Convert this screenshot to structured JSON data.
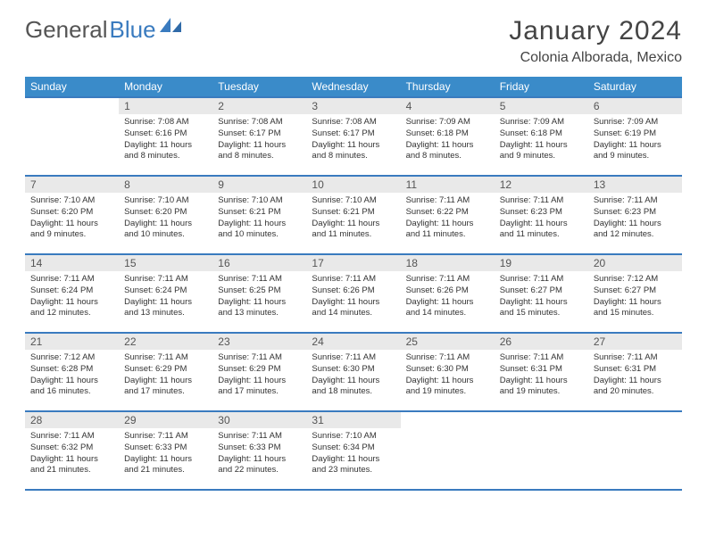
{
  "brand": {
    "word1": "General",
    "word2": "Blue"
  },
  "header": {
    "month_title": "January 2024",
    "location": "Colonia Alborada, Mexico"
  },
  "calendar": {
    "type": "table",
    "columns": [
      "Sunday",
      "Monday",
      "Tuesday",
      "Wednesday",
      "Thursday",
      "Friday",
      "Saturday"
    ],
    "header_bg": "#3a8bc9",
    "header_fg": "#ffffff",
    "daynum_bg": "#e9e9e9",
    "row_border_color": "#3a7bbf",
    "first_day_column": 1,
    "days": [
      {
        "n": 1,
        "sunrise": "7:08 AM",
        "sunset": "6:16 PM",
        "daylight": "11 hours and 8 minutes."
      },
      {
        "n": 2,
        "sunrise": "7:08 AM",
        "sunset": "6:17 PM",
        "daylight": "11 hours and 8 minutes."
      },
      {
        "n": 3,
        "sunrise": "7:08 AM",
        "sunset": "6:17 PM",
        "daylight": "11 hours and 8 minutes."
      },
      {
        "n": 4,
        "sunrise": "7:09 AM",
        "sunset": "6:18 PM",
        "daylight": "11 hours and 8 minutes."
      },
      {
        "n": 5,
        "sunrise": "7:09 AM",
        "sunset": "6:18 PM",
        "daylight": "11 hours and 9 minutes."
      },
      {
        "n": 6,
        "sunrise": "7:09 AM",
        "sunset": "6:19 PM",
        "daylight": "11 hours and 9 minutes."
      },
      {
        "n": 7,
        "sunrise": "7:10 AM",
        "sunset": "6:20 PM",
        "daylight": "11 hours and 9 minutes."
      },
      {
        "n": 8,
        "sunrise": "7:10 AM",
        "sunset": "6:20 PM",
        "daylight": "11 hours and 10 minutes."
      },
      {
        "n": 9,
        "sunrise": "7:10 AM",
        "sunset": "6:21 PM",
        "daylight": "11 hours and 10 minutes."
      },
      {
        "n": 10,
        "sunrise": "7:10 AM",
        "sunset": "6:21 PM",
        "daylight": "11 hours and 11 minutes."
      },
      {
        "n": 11,
        "sunrise": "7:11 AM",
        "sunset": "6:22 PM",
        "daylight": "11 hours and 11 minutes."
      },
      {
        "n": 12,
        "sunrise": "7:11 AM",
        "sunset": "6:23 PM",
        "daylight": "11 hours and 11 minutes."
      },
      {
        "n": 13,
        "sunrise": "7:11 AM",
        "sunset": "6:23 PM",
        "daylight": "11 hours and 12 minutes."
      },
      {
        "n": 14,
        "sunrise": "7:11 AM",
        "sunset": "6:24 PM",
        "daylight": "11 hours and 12 minutes."
      },
      {
        "n": 15,
        "sunrise": "7:11 AM",
        "sunset": "6:24 PM",
        "daylight": "11 hours and 13 minutes."
      },
      {
        "n": 16,
        "sunrise": "7:11 AM",
        "sunset": "6:25 PM",
        "daylight": "11 hours and 13 minutes."
      },
      {
        "n": 17,
        "sunrise": "7:11 AM",
        "sunset": "6:26 PM",
        "daylight": "11 hours and 14 minutes."
      },
      {
        "n": 18,
        "sunrise": "7:11 AM",
        "sunset": "6:26 PM",
        "daylight": "11 hours and 14 minutes."
      },
      {
        "n": 19,
        "sunrise": "7:11 AM",
        "sunset": "6:27 PM",
        "daylight": "11 hours and 15 minutes."
      },
      {
        "n": 20,
        "sunrise": "7:12 AM",
        "sunset": "6:27 PM",
        "daylight": "11 hours and 15 minutes."
      },
      {
        "n": 21,
        "sunrise": "7:12 AM",
        "sunset": "6:28 PM",
        "daylight": "11 hours and 16 minutes."
      },
      {
        "n": 22,
        "sunrise": "7:11 AM",
        "sunset": "6:29 PM",
        "daylight": "11 hours and 17 minutes."
      },
      {
        "n": 23,
        "sunrise": "7:11 AM",
        "sunset": "6:29 PM",
        "daylight": "11 hours and 17 minutes."
      },
      {
        "n": 24,
        "sunrise": "7:11 AM",
        "sunset": "6:30 PM",
        "daylight": "11 hours and 18 minutes."
      },
      {
        "n": 25,
        "sunrise": "7:11 AM",
        "sunset": "6:30 PM",
        "daylight": "11 hours and 19 minutes."
      },
      {
        "n": 26,
        "sunrise": "7:11 AM",
        "sunset": "6:31 PM",
        "daylight": "11 hours and 19 minutes."
      },
      {
        "n": 27,
        "sunrise": "7:11 AM",
        "sunset": "6:31 PM",
        "daylight": "11 hours and 20 minutes."
      },
      {
        "n": 28,
        "sunrise": "7:11 AM",
        "sunset": "6:32 PM",
        "daylight": "11 hours and 21 minutes."
      },
      {
        "n": 29,
        "sunrise": "7:11 AM",
        "sunset": "6:33 PM",
        "daylight": "11 hours and 21 minutes."
      },
      {
        "n": 30,
        "sunrise": "7:11 AM",
        "sunset": "6:33 PM",
        "daylight": "11 hours and 22 minutes."
      },
      {
        "n": 31,
        "sunrise": "7:10 AM",
        "sunset": "6:34 PM",
        "daylight": "11 hours and 23 minutes."
      }
    ]
  },
  "labels": {
    "sunrise": "Sunrise:",
    "sunset": "Sunset:",
    "daylight": "Daylight:"
  }
}
